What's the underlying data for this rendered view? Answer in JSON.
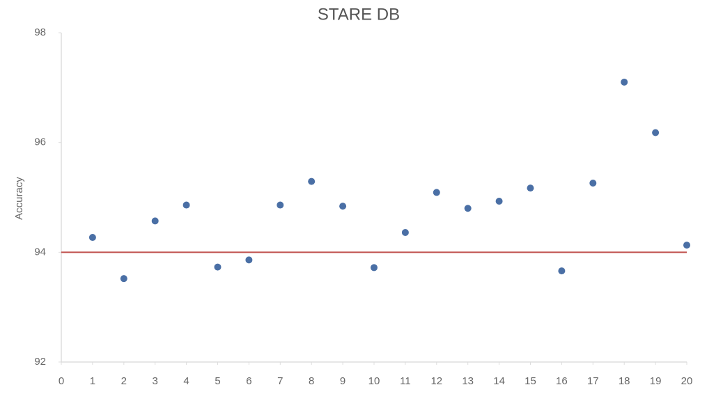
{
  "chart_data": {
    "type": "scatter",
    "title": "STARE DB",
    "y_label": "Accuracy",
    "x": [
      1,
      2,
      3,
      4,
      5,
      6,
      7,
      8,
      9,
      10,
      11,
      12,
      13,
      14,
      15,
      16,
      17,
      18,
      19,
      20
    ],
    "values": [
      94.27,
      93.52,
      94.57,
      94.86,
      93.73,
      93.86,
      94.86,
      95.29,
      94.84,
      93.72,
      94.36,
      95.09,
      94.8,
      94.93,
      95.17,
      93.66,
      95.26,
      97.1,
      96.18,
      94.13
    ],
    "color": "#4a6fa5",
    "reference_line": {
      "value": 94,
      "color": "#c0504d"
    },
    "xlim": [
      0,
      20
    ],
    "xticks": [
      0,
      1,
      2,
      3,
      4,
      5,
      6,
      7,
      8,
      9,
      10,
      11,
      12,
      13,
      14,
      15,
      16,
      17,
      18,
      19,
      20
    ],
    "ylim": [
      92,
      98
    ],
    "yticks": [
      92,
      94,
      96,
      98
    ]
  }
}
